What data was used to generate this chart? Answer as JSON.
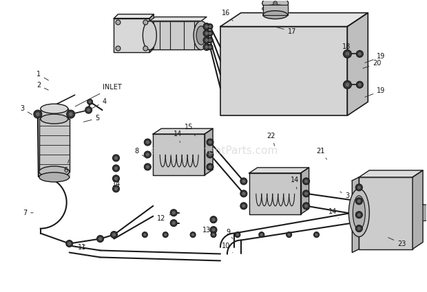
{
  "bg": "#ffffff",
  "lc": "#1a1a1a",
  "watermark": "eReplacementParts.com",
  "wm_color": "#c8c8c8",
  "wm_alpha": 0.55,
  "figsize": [
    6.2,
    4.25
  ],
  "dpi": 100
}
